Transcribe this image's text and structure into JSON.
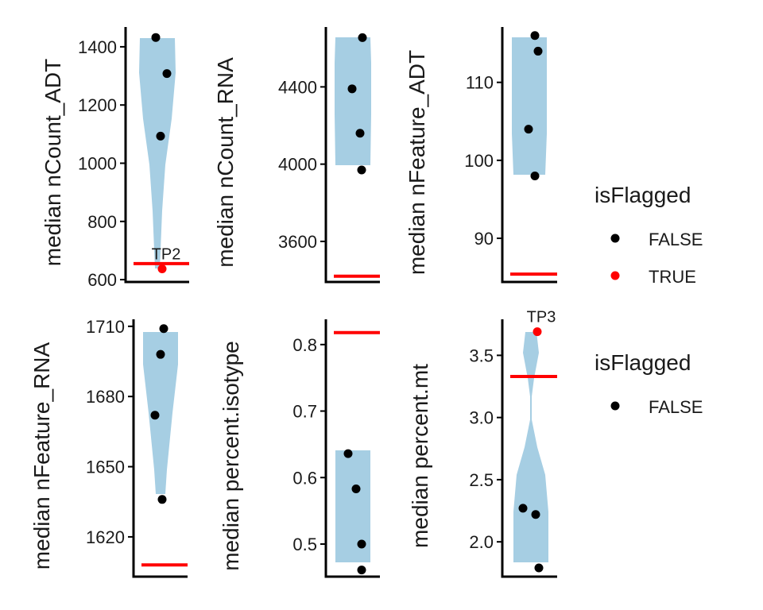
{
  "colors": {
    "violin": "#a6cee3",
    "normal_point": "#000000",
    "flagged_point": "#ff0000",
    "threshold_line": "#ff0000",
    "axis": "#000000"
  },
  "chart_data": [
    {
      "type": "violin",
      "ylabel": "median nCount_ADT",
      "ylim": [
        592,
        1468
      ],
      "yticks": [
        "600",
        "800",
        "1000",
        "1200",
        "1400"
      ],
      "threshold": 655,
      "points": [
        {
          "y": 1432,
          "flagged": false
        },
        {
          "y": 1308,
          "flagged": false
        },
        {
          "y": 1093,
          "flagged": false
        },
        {
          "y": 637,
          "flagged": true,
          "label": "TP2"
        }
      ]
    },
    {
      "type": "violin",
      "ylabel": "median nCount_RNA",
      "ylim": [
        3390,
        4710
      ],
      "yticks": [
        "3600",
        "4000",
        "4400"
      ],
      "threshold": 3420,
      "points": [
        {
          "y": 4655,
          "flagged": false
        },
        {
          "y": 4390,
          "flagged": false
        },
        {
          "y": 4160,
          "flagged": false
        },
        {
          "y": 3970,
          "flagged": false
        }
      ]
    },
    {
      "type": "violin",
      "ylabel": "median nFeature_ADT",
      "ylim": [
        84.4,
        117.1
      ],
      "yticks": [
        "90",
        "100",
        "110"
      ],
      "threshold": 85.4,
      "points": [
        {
          "y": 116,
          "flagged": false
        },
        {
          "y": 114,
          "flagged": false
        },
        {
          "y": 104,
          "flagged": false
        },
        {
          "y": 98,
          "flagged": false
        }
      ]
    },
    {
      "type": "violin",
      "ylabel": "median nFeature_RNA",
      "ylim": [
        1603,
        1713
      ],
      "yticks": [
        "1620",
        "1650",
        "1680",
        "1710"
      ],
      "threshold": 1608,
      "points": [
        {
          "y": 1709,
          "flagged": false
        },
        {
          "y": 1698,
          "flagged": false
        },
        {
          "y": 1672,
          "flagged": false
        },
        {
          "y": 1636,
          "flagged": false
        }
      ]
    },
    {
      "type": "violin",
      "ylabel": "median percent.isotype",
      "ylim": [
        0.451,
        0.838
      ],
      "yticks": [
        "0.5",
        "0.6",
        "0.7",
        "0.8"
      ],
      "threshold": 0.818,
      "points": [
        {
          "y": 0.636,
          "flagged": false
        },
        {
          "y": 0.583,
          "flagged": false
        },
        {
          "y": 0.5,
          "flagged": false
        },
        {
          "y": 0.461,
          "flagged": false
        }
      ]
    },
    {
      "type": "violin",
      "ylabel": "median percent.mt",
      "ylim": [
        1.72,
        3.79
      ],
      "yticks": [
        "2.0",
        "2.5",
        "3.0",
        "3.5"
      ],
      "threshold": 3.33,
      "points": [
        {
          "y": 3.69,
          "flagged": true,
          "label": "TP3"
        },
        {
          "y": 2.27,
          "flagged": false
        },
        {
          "y": 2.22,
          "flagged": false
        },
        {
          "y": 1.79,
          "flagged": false
        }
      ]
    }
  ],
  "legends": [
    {
      "title": "isFlagged",
      "items": [
        {
          "label": "FALSE",
          "color": "#000000"
        },
        {
          "label": "TRUE",
          "color": "#ff0000"
        }
      ]
    },
    {
      "title": "isFlagged",
      "items": [
        {
          "label": "FALSE",
          "color": "#000000"
        }
      ]
    }
  ]
}
